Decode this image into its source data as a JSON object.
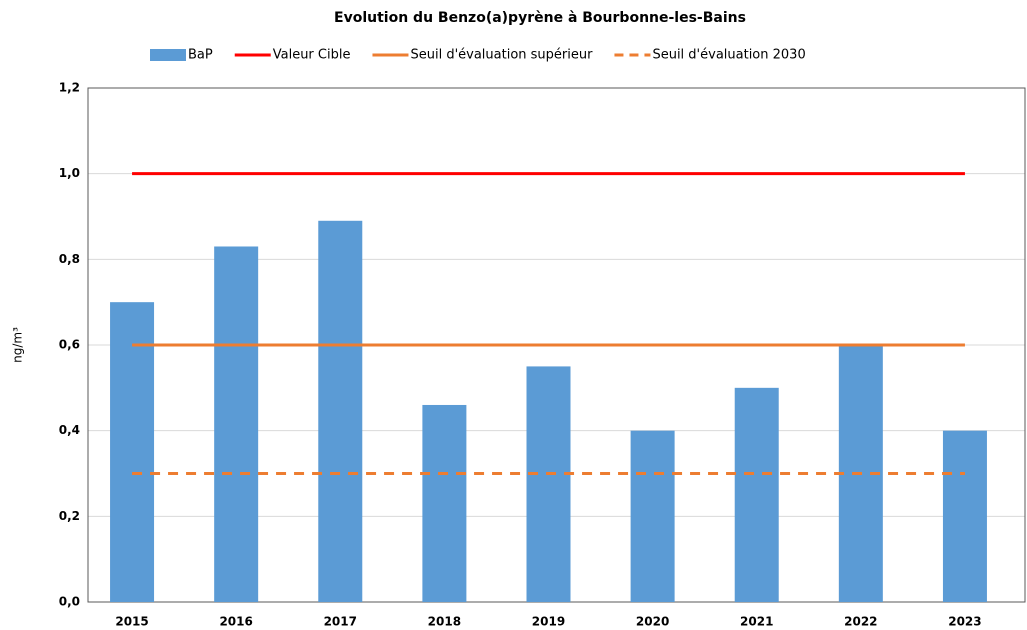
{
  "chart_data": {
    "type": "bar",
    "title": "Evolution du Benzo(a)pyrène à Bourbonne-les-Bains",
    "y_label": "ng/m³",
    "categories": [
      "2015",
      "2016",
      "2017",
      "2018",
      "2019",
      "2020",
      "2021",
      "2022",
      "2023"
    ],
    "series": [
      {
        "name": "BaP",
        "type": "bar",
        "color": "#5b9bd5",
        "values": [
          0.7,
          0.83,
          0.89,
          0.46,
          0.55,
          0.4,
          0.5,
          0.6,
          0.4
        ]
      },
      {
        "name": "Valeur Cible",
        "type": "line",
        "color": "#ff0000",
        "dashed": false,
        "values": [
          1.0,
          1.0,
          1.0,
          1.0,
          1.0,
          1.0,
          1.0,
          1.0,
          1.0
        ]
      },
      {
        "name": "Seuil d'évaluation supérieur",
        "type": "line",
        "color": "#ed7d31",
        "dashed": false,
        "values": [
          0.6,
          0.6,
          0.6,
          0.6,
          0.6,
          0.6,
          0.6,
          0.6,
          0.6
        ]
      },
      {
        "name": "Seuil d'évaluation 2030",
        "type": "line",
        "color": "#ed7d31",
        "dashed": true,
        "values": [
          0.3,
          0.3,
          0.3,
          0.3,
          0.3,
          0.3,
          0.3,
          0.3,
          0.3
        ]
      }
    ],
    "ylim": [
      0,
      1.2
    ],
    "yticks": [
      {
        "value": 0,
        "label": "0,0"
      },
      {
        "value": 0.2,
        "label": "0,2"
      },
      {
        "value": 0.4,
        "label": "0,4"
      },
      {
        "value": 0.6,
        "label": "0,6"
      },
      {
        "value": 0.8,
        "label": "0,8"
      },
      {
        "value": 1.0,
        "label": "1,0"
      },
      {
        "value": 1.2,
        "label": "1,2"
      }
    ],
    "grid": true,
    "legend": "top"
  }
}
